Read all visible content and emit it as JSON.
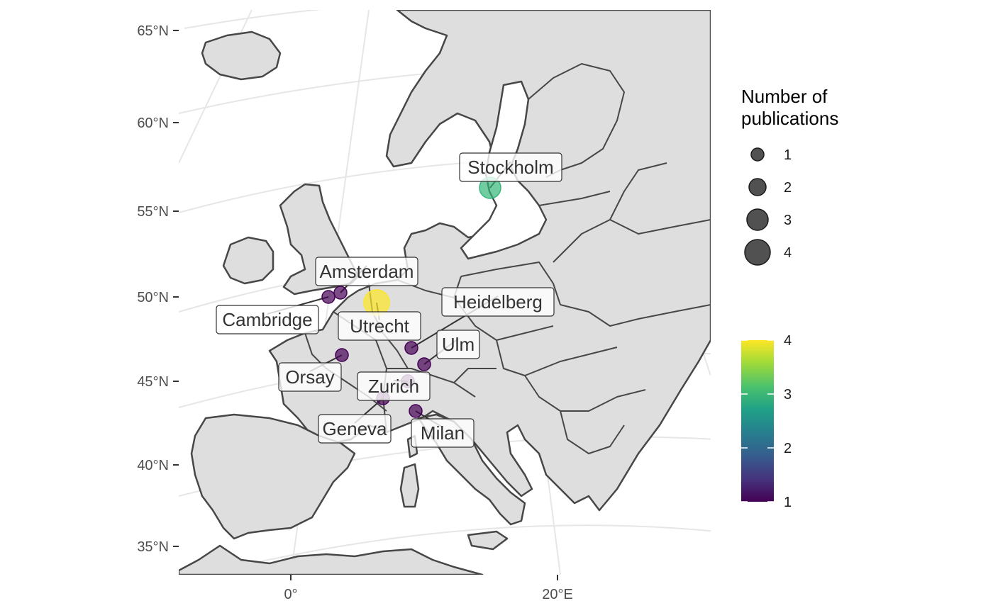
{
  "map": {
    "graticule_lat_labels": [
      "65°N",
      "60°N",
      "55°N",
      "50°N",
      "45°N",
      "40°N",
      "35°N"
    ],
    "graticule_lon_labels": [
      "0°",
      "20°E"
    ],
    "cities": [
      {
        "name": "Stockholm",
        "publications": 3
      },
      {
        "name": "Amsterdam",
        "publications": 1
      },
      {
        "name": "Utrecht",
        "publications": 4
      },
      {
        "name": "Cambridge",
        "publications": 1
      },
      {
        "name": "Heidelberg",
        "publications": 1
      },
      {
        "name": "Ulm",
        "publications": 1
      },
      {
        "name": "Orsay",
        "publications": 1
      },
      {
        "name": "Zurich",
        "publications": 1
      },
      {
        "name": "Geneva",
        "publications": 1
      },
      {
        "name": "Milan",
        "publications": 1
      }
    ],
    "colors": {
      "land": "#dedede",
      "border": "#474747",
      "graticule": "#e6e6e6",
      "sea": "#ffffff",
      "viridis_low": "#440154",
      "viridis_mid2": "#31688e",
      "viridis_mid3": "#35b779",
      "viridis_high": "#fde725"
    }
  },
  "legend_size": {
    "title_line1": "Number of",
    "title_line2": "publications",
    "values": [
      "1",
      "2",
      "3",
      "4"
    ]
  },
  "legend_color": {
    "ticks": [
      "4",
      "3",
      "2",
      "1"
    ]
  }
}
